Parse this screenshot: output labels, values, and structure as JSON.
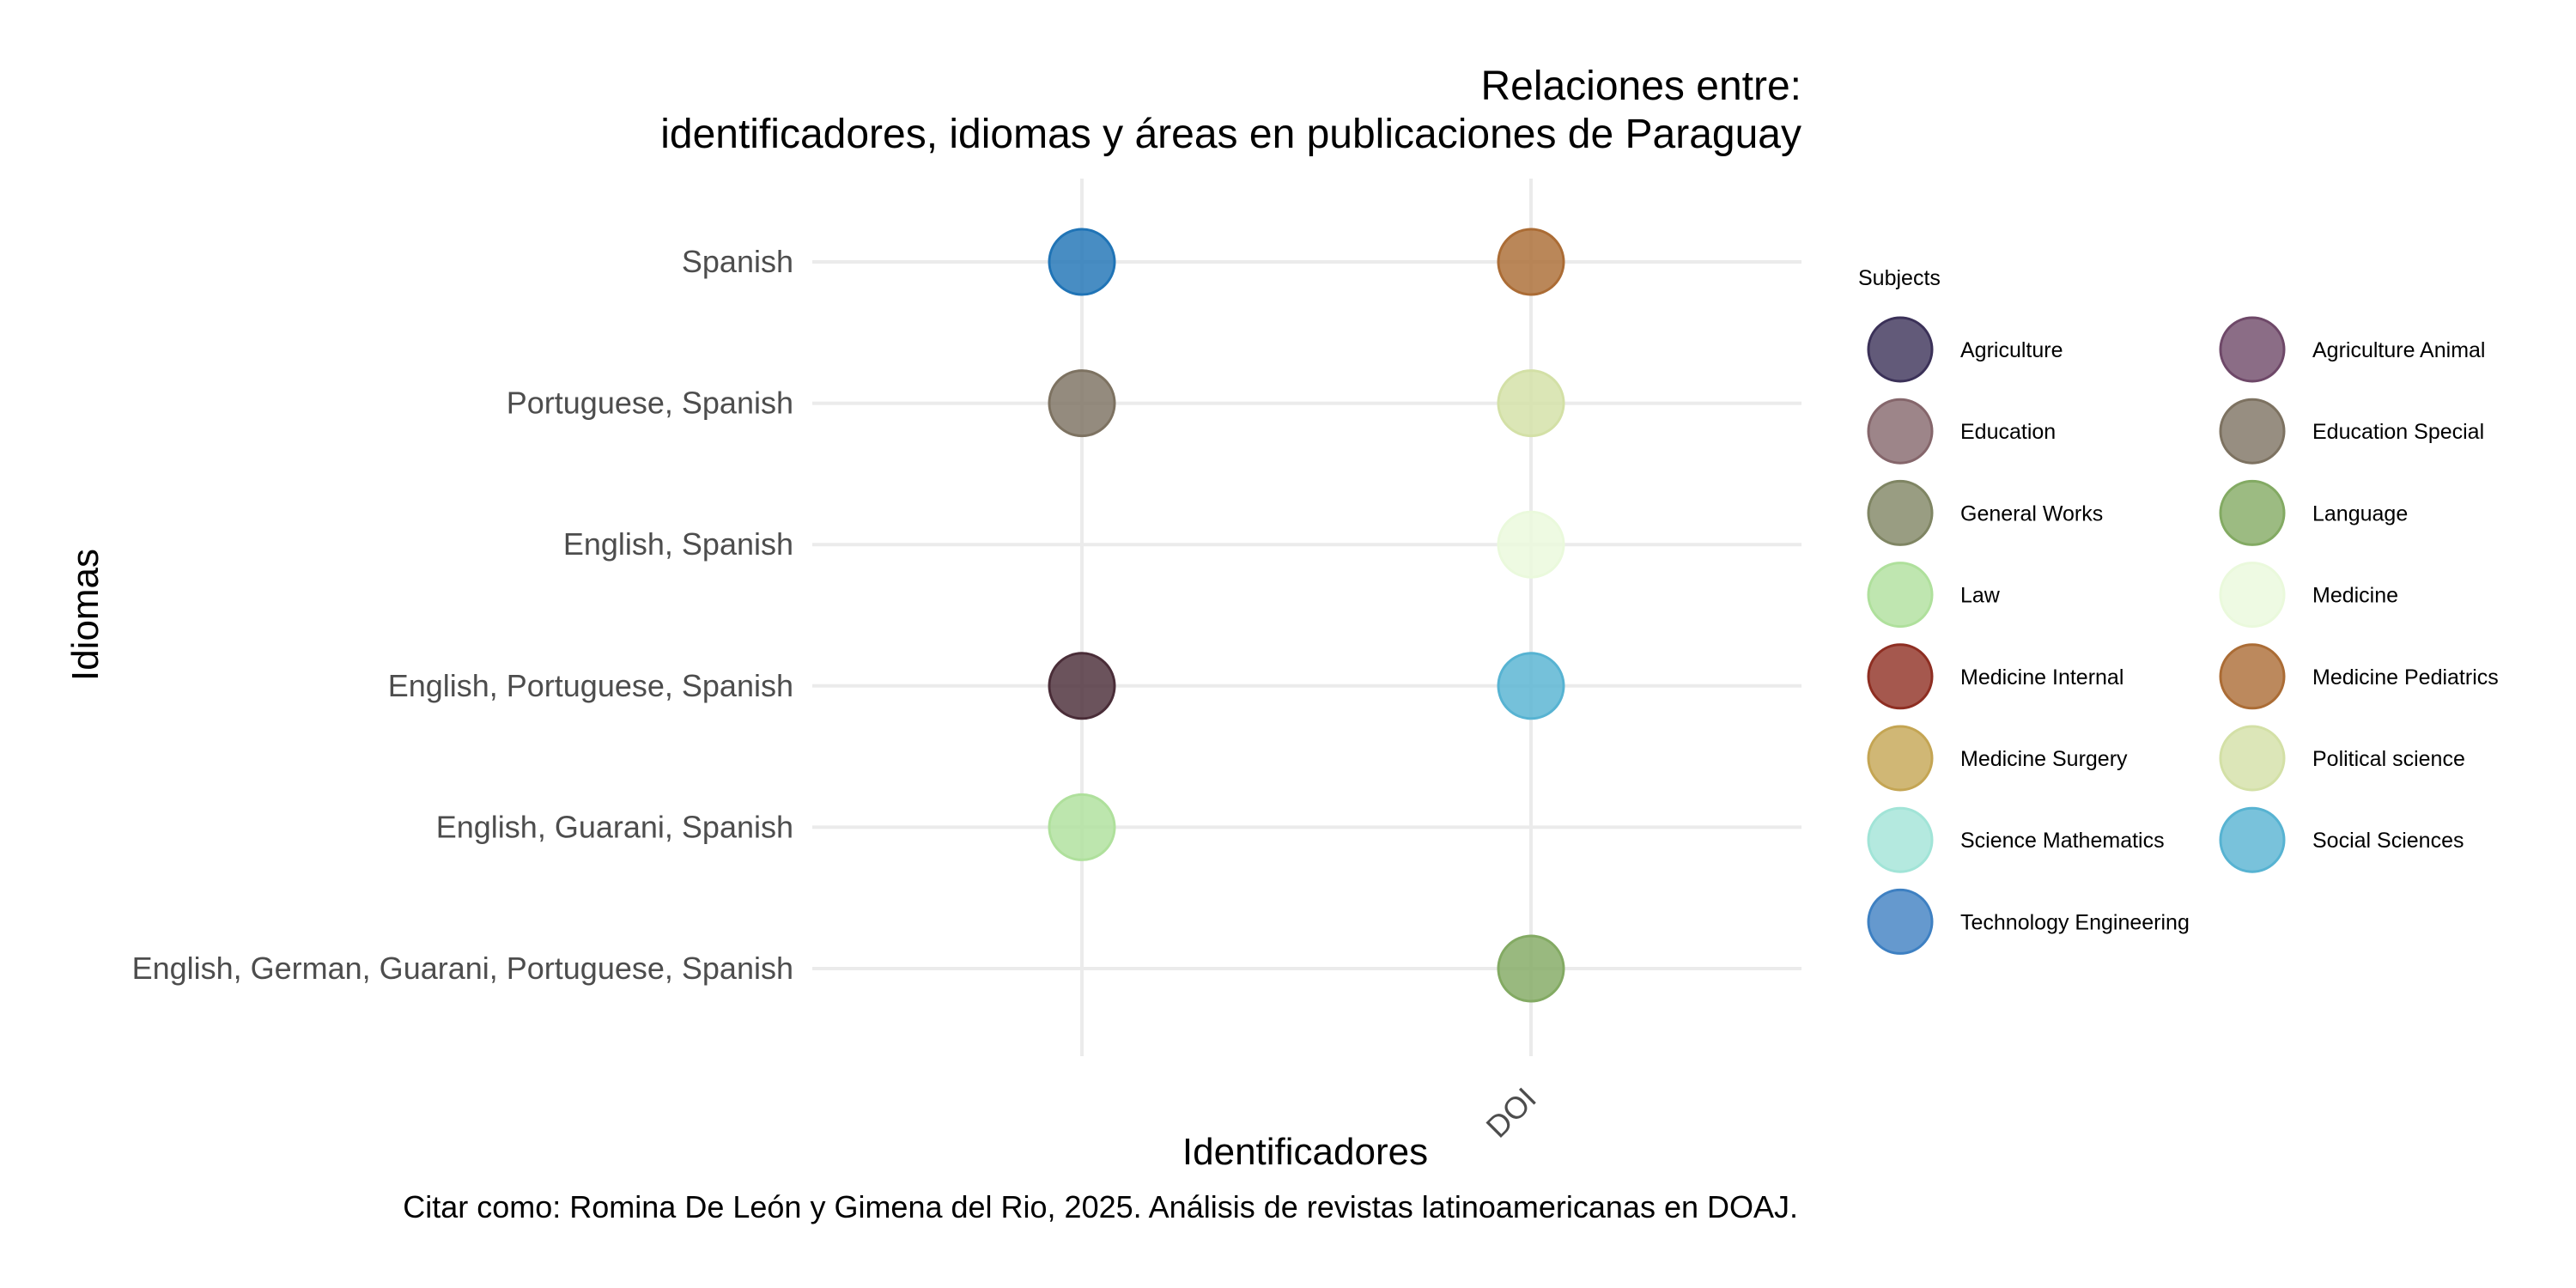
{
  "chart_data": {
    "type": "scatter",
    "title": [
      "Relaciones entre:",
      "identificadores, idiomas y áreas en publicaciones de Paraguay"
    ],
    "xlabel": "Identificadores",
    "ylabel": "Idiomas",
    "caption": "Citar como: Romina De León y Gimena del Rio, 2025. Análisis de revistas latinoamericanas en DOAJ.",
    "x_categories": [
      "",
      "DOI"
    ],
    "y_categories": [
      "Spanish",
      "Portuguese, Spanish",
      "English, Spanish",
      "English, Portuguese, Spanish",
      "English, Guarani, Spanish",
      "English, German, Guarani, Portuguese, Spanish"
    ],
    "grid": true,
    "legend": {
      "title": "Subjects",
      "placement": "right",
      "columns": 2,
      "items": [
        {
          "name": "Agriculture",
          "color": "#3b3158"
        },
        {
          "name": "Agriculture Animal",
          "color": "#6e4868"
        },
        {
          "name": "Education",
          "color": "#85666b"
        },
        {
          "name": "Education Special",
          "color": "#7d7261"
        },
        {
          "name": "General Works",
          "color": "#7f8563"
        },
        {
          "name": "Language",
          "color": "#83aa63"
        },
        {
          "name": "Law",
          "color": "#afe09c"
        },
        {
          "name": "Medicine",
          "color": "#eaf9dc"
        },
        {
          "name": "Medicine Internal",
          "color": "#8e2e22"
        },
        {
          "name": "Medicine Pediatrics",
          "color": "#ab6c35"
        },
        {
          "name": "Medicine Surgery",
          "color": "#c4a553"
        },
        {
          "name": "Political science",
          "color": "#d3e0a6"
        },
        {
          "name": "Science Mathematics",
          "color": "#a1e4d7"
        },
        {
          "name": "Social Sciences",
          "color": "#57b3d2"
        },
        {
          "name": "Technology Engineering",
          "color": "#3e80c2"
        }
      ]
    },
    "points": [
      {
        "x": "",
        "y": "Spanish",
        "subject": "Technology Engineering",
        "color": "#2074b6"
      },
      {
        "x": "DOI",
        "y": "Spanish",
        "subject": "Medicine Pediatrics",
        "color": "#ab6c35"
      },
      {
        "x": "",
        "y": "Portuguese, Spanish",
        "subject": "Education Special",
        "color": "#7d7261"
      },
      {
        "x": "DOI",
        "y": "Portuguese, Spanish",
        "subject": "Political science",
        "color": "#d3e0a6"
      },
      {
        "x": "DOI",
        "y": "English, Spanish",
        "subject": "Medicine",
        "color": "#eaf9dc"
      },
      {
        "x": "",
        "y": "English, Portuguese, Spanish",
        "subject": "Agriculture Animal",
        "color": "#4a2d38"
      },
      {
        "x": "DOI",
        "y": "English, Portuguese, Spanish",
        "subject": "Social Sciences",
        "color": "#57b3d2"
      },
      {
        "x": "",
        "y": "English, Guarani, Spanish",
        "subject": "Law",
        "color": "#afe09c"
      },
      {
        "x": "DOI",
        "y": "English, German, Guarani, Portuguese, Spanish",
        "subject": "Language",
        "color": "#83aa63"
      }
    ]
  }
}
